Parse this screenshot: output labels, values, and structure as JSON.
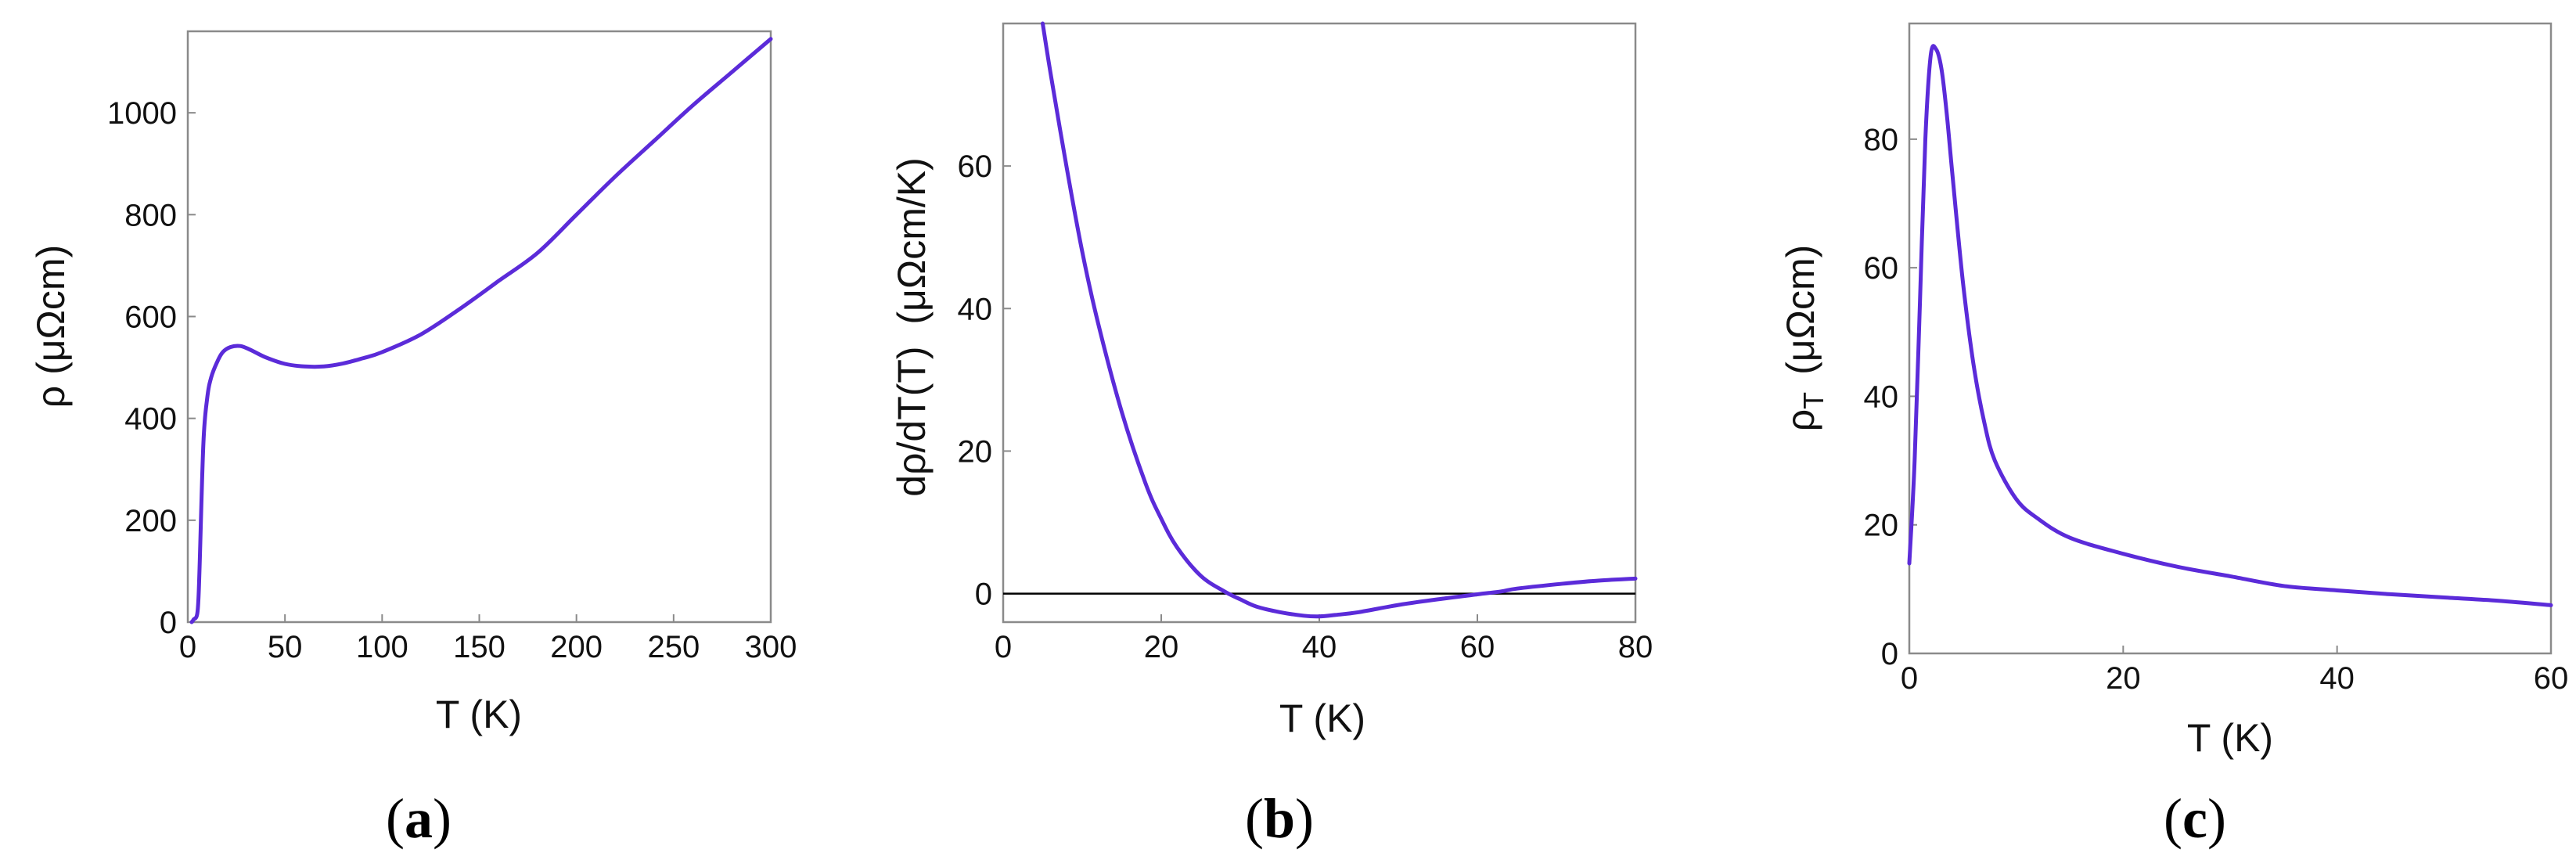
{
  "colors": {
    "series": "#5b2bd9",
    "axis": "#8a8a8a",
    "zero_line": "#000000",
    "text": "#111111"
  },
  "chart_data": [
    {
      "type": "line",
      "panel_id": "a",
      "panel_label": {
        "open": "(",
        "letter": "a",
        "close": ")"
      },
      "title": "",
      "xlabel": "T (K)",
      "ylabel": "ρ (μΩcm)",
      "xlim": [
        0,
        300
      ],
      "ylim": [
        0,
        1160
      ],
      "xticks": [
        0,
        50,
        100,
        150,
        200,
        250,
        300
      ],
      "xtick_labels": [
        "0",
        "50",
        "100",
        "150",
        "200",
        "250",
        "300"
      ],
      "yticks": [
        0,
        200,
        400,
        600,
        800,
        1000
      ],
      "ytick_labels": [
        "0",
        "200",
        "400",
        "600",
        "800",
        "1000"
      ],
      "series": [
        {
          "name": "ρ(T)",
          "x": [
            2,
            3,
            5,
            6,
            8,
            10,
            12,
            15,
            18,
            22,
            27,
            32,
            40,
            50,
            60,
            70,
            80,
            90,
            100,
            120,
            140,
            160,
            180,
            200,
            220,
            240,
            260,
            280,
            300
          ],
          "y": [
            0,
            5,
            20,
            100,
            350,
            440,
            480,
            510,
            530,
            540,
            542,
            535,
            520,
            507,
            502,
            502,
            508,
            518,
            530,
            565,
            615,
            670,
            725,
            800,
            875,
            945,
            1015,
            1080,
            1145
          ]
        }
      ]
    },
    {
      "type": "line",
      "panel_id": "b",
      "panel_label": {
        "open": "(",
        "letter": "b",
        "close": ")"
      },
      "title": "",
      "xlabel": "T (K)",
      "ylabel": "dρ/dT(T)  (μΩcm/K)",
      "xlim": [
        0,
        80
      ],
      "ylim": [
        -4,
        80
      ],
      "xticks": [
        0,
        20,
        40,
        60,
        80
      ],
      "xtick_labels": [
        "0",
        "20",
        "40",
        "60",
        "80"
      ],
      "yticks": [
        0,
        20,
        40,
        60
      ],
      "ytick_labels": [
        "0",
        "20",
        "40",
        "60"
      ],
      "reference_line_y": 0,
      "series": [
        {
          "name": "dρ/dT",
          "x": [
            5,
            6,
            8,
            10,
            12,
            15,
            18,
            20,
            22,
            25,
            28,
            30,
            32,
            35,
            38,
            40,
            42,
            45,
            50,
            55,
            60,
            63,
            65,
            70,
            75,
            80
          ],
          "y": [
            80,
            73,
            60,
            48,
            38,
            25.5,
            15.5,
            10.5,
            6.5,
            2.5,
            0.3,
            -0.8,
            -1.8,
            -2.6,
            -3.1,
            -3.2,
            -3.0,
            -2.6,
            -1.6,
            -0.8,
            -0.1,
            0.3,
            0.7,
            1.3,
            1.8,
            2.1
          ]
        }
      ]
    },
    {
      "type": "line",
      "panel_id": "c",
      "panel_label": {
        "open": "(",
        "letter": "c",
        "close": ")"
      },
      "title": "",
      "xlabel": "T (K)",
      "ylabel_main": "ρ",
      "ylabel_subscript": "T",
      "ylabel_units": "(μΩcm)",
      "xlim": [
        0,
        60
      ],
      "ylim": [
        0,
        98
      ],
      "xticks": [
        0,
        20,
        40,
        60
      ],
      "xtick_labels": [
        "0",
        "20",
        "40",
        "60"
      ],
      "yticks": [
        0,
        20,
        40,
        60,
        80
      ],
      "ytick_labels": [
        "0",
        "20",
        "40",
        "60",
        "80"
      ],
      "series": [
        {
          "name": "ρ_T",
          "x": [
            0,
            0.5,
            1,
            1.5,
            2,
            2.5,
            3,
            3.5,
            4,
            5,
            6,
            7,
            8,
            10,
            12,
            15,
            20,
            25,
            30,
            35,
            40,
            45,
            50,
            55,
            60
          ],
          "y": [
            14,
            30,
            55,
            80,
            93,
            94,
            91,
            84,
            75,
            58,
            45,
            36,
            30,
            24,
            21,
            18,
            15.5,
            13.5,
            12,
            10.5,
            9.8,
            9.2,
            8.7,
            8.2,
            7.5
          ]
        }
      ]
    }
  ]
}
